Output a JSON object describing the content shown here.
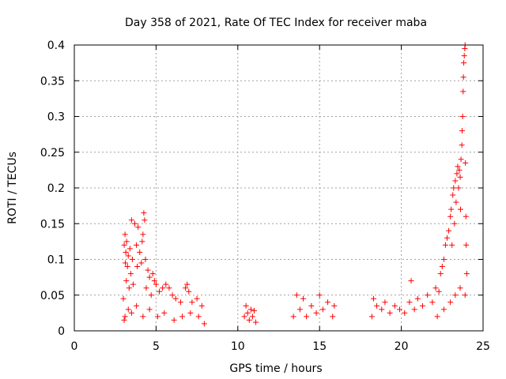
{
  "chart_data": {
    "type": "scatter",
    "title": "Day 358 of 2021, Rate Of TEC Index for receiver maba",
    "xlabel": "GPS time / hours",
    "ylabel": "ROTI / TECUs",
    "xlim": [
      0,
      25
    ],
    "ylim": [
      0,
      0.4
    ],
    "x_ticks": [
      0,
      5,
      10,
      15,
      20,
      25
    ],
    "x_tick_labels": [
      "0",
      "5",
      "10",
      "15",
      "20",
      "25"
    ],
    "y_ticks": [
      0,
      0.05,
      0.1,
      0.15,
      0.2,
      0.25,
      0.3,
      0.35,
      0.4
    ],
    "y_tick_labels": [
      "0",
      "0.05",
      "0.1",
      "0.15",
      "0.2",
      "0.25",
      "0.3",
      "0.35",
      "0.4"
    ],
    "grid": true,
    "marker": "+",
    "color": "#ff0000",
    "series": [
      {
        "name": "ROTI",
        "points": [
          [
            3.0,
            0.045
          ],
          [
            3.05,
            0.12
          ],
          [
            3.1,
            0.135
          ],
          [
            3.12,
            0.095
          ],
          [
            3.15,
            0.11
          ],
          [
            3.18,
            0.07
          ],
          [
            3.2,
            0.125
          ],
          [
            3.25,
            0.09
          ],
          [
            3.3,
            0.105
          ],
          [
            3.35,
            0.06
          ],
          [
            3.4,
            0.115
          ],
          [
            3.45,
            0.08
          ],
          [
            3.5,
            0.155
          ],
          [
            3.55,
            0.1
          ],
          [
            3.6,
            0.065
          ],
          [
            3.7,
            0.15
          ],
          [
            3.8,
            0.12
          ],
          [
            3.85,
            0.09
          ],
          [
            3.9,
            0.145
          ],
          [
            4.0,
            0.11
          ],
          [
            4.1,
            0.095
          ],
          [
            4.15,
            0.125
          ],
          [
            4.2,
            0.135
          ],
          [
            4.25,
            0.165
          ],
          [
            4.3,
            0.155
          ],
          [
            4.35,
            0.1
          ],
          [
            4.4,
            0.06
          ],
          [
            4.5,
            0.085
          ],
          [
            4.6,
            0.075
          ],
          [
            4.7,
            0.05
          ],
          [
            4.8,
            0.08
          ],
          [
            4.9,
            0.07
          ],
          [
            5.0,
            0.065
          ],
          [
            5.2,
            0.055
          ],
          [
            5.4,
            0.06
          ],
          [
            5.6,
            0.065
          ],
          [
            5.8,
            0.06
          ],
          [
            6.0,
            0.05
          ],
          [
            6.2,
            0.045
          ],
          [
            6.5,
            0.04
          ],
          [
            6.8,
            0.06
          ],
          [
            6.9,
            0.065
          ],
          [
            7.0,
            0.055
          ],
          [
            7.2,
            0.04
          ],
          [
            7.5,
            0.045
          ],
          [
            7.8,
            0.035
          ],
          [
            3.05,
            0.015
          ],
          [
            3.1,
            0.02
          ],
          [
            3.3,
            0.03
          ],
          [
            3.5,
            0.025
          ],
          [
            3.8,
            0.035
          ],
          [
            4.2,
            0.02
          ],
          [
            4.6,
            0.03
          ],
          [
            5.1,
            0.02
          ],
          [
            5.5,
            0.025
          ],
          [
            6.1,
            0.015
          ],
          [
            6.6,
            0.02
          ],
          [
            7.1,
            0.025
          ],
          [
            7.6,
            0.02
          ],
          [
            7.95,
            0.01
          ],
          [
            10.4,
            0.02
          ],
          [
            10.5,
            0.035
          ],
          [
            10.6,
            0.025
          ],
          [
            10.7,
            0.015
          ],
          [
            10.8,
            0.03
          ],
          [
            10.9,
            0.02
          ],
          [
            11.0,
            0.028
          ],
          [
            11.1,
            0.012
          ],
          [
            13.4,
            0.02
          ],
          [
            13.6,
            0.05
          ],
          [
            13.8,
            0.03
          ],
          [
            14.0,
            0.045
          ],
          [
            14.2,
            0.02
          ],
          [
            14.5,
            0.035
          ],
          [
            14.8,
            0.025
          ],
          [
            15.0,
            0.05
          ],
          [
            15.2,
            0.03
          ],
          [
            15.5,
            0.04
          ],
          [
            15.8,
            0.02
          ],
          [
            15.9,
            0.035
          ],
          [
            18.2,
            0.02
          ],
          [
            18.3,
            0.045
          ],
          [
            18.5,
            0.035
          ],
          [
            18.8,
            0.03
          ],
          [
            19.0,
            0.04
          ],
          [
            19.3,
            0.025
          ],
          [
            19.6,
            0.035
          ],
          [
            19.9,
            0.03
          ],
          [
            20.2,
            0.025
          ],
          [
            20.5,
            0.04
          ],
          [
            20.6,
            0.07
          ],
          [
            20.8,
            0.03
          ],
          [
            21.0,
            0.045
          ],
          [
            21.3,
            0.035
          ],
          [
            21.6,
            0.05
          ],
          [
            21.9,
            0.04
          ],
          [
            22.1,
            0.06
          ],
          [
            22.3,
            0.055
          ],
          [
            22.4,
            0.08
          ],
          [
            22.5,
            0.09
          ],
          [
            22.6,
            0.1
          ],
          [
            22.7,
            0.12
          ],
          [
            22.8,
            0.13
          ],
          [
            22.9,
            0.14
          ],
          [
            23.0,
            0.16
          ],
          [
            23.05,
            0.17
          ],
          [
            23.1,
            0.12
          ],
          [
            23.15,
            0.19
          ],
          [
            23.2,
            0.2
          ],
          [
            23.25,
            0.15
          ],
          [
            23.3,
            0.21
          ],
          [
            23.35,
            0.18
          ],
          [
            23.4,
            0.22
          ],
          [
            23.45,
            0.23
          ],
          [
            23.5,
            0.2
          ],
          [
            23.55,
            0.225
          ],
          [
            23.6,
            0.215
          ],
          [
            23.62,
            0.17
          ],
          [
            23.65,
            0.24
          ],
          [
            23.7,
            0.26
          ],
          [
            23.72,
            0.28
          ],
          [
            23.75,
            0.3
          ],
          [
            23.78,
            0.335
          ],
          [
            23.8,
            0.355
          ],
          [
            23.82,
            0.375
          ],
          [
            23.85,
            0.385
          ],
          [
            23.88,
            0.395
          ],
          [
            23.9,
            0.4
          ],
          [
            23.92,
            0.235
          ],
          [
            23.95,
            0.16
          ],
          [
            23.97,
            0.12
          ],
          [
            24.0,
            0.08
          ],
          [
            22.2,
            0.02
          ],
          [
            22.6,
            0.03
          ],
          [
            23.0,
            0.04
          ],
          [
            23.3,
            0.05
          ],
          [
            23.6,
            0.06
          ],
          [
            23.9,
            0.05
          ]
        ]
      }
    ]
  }
}
